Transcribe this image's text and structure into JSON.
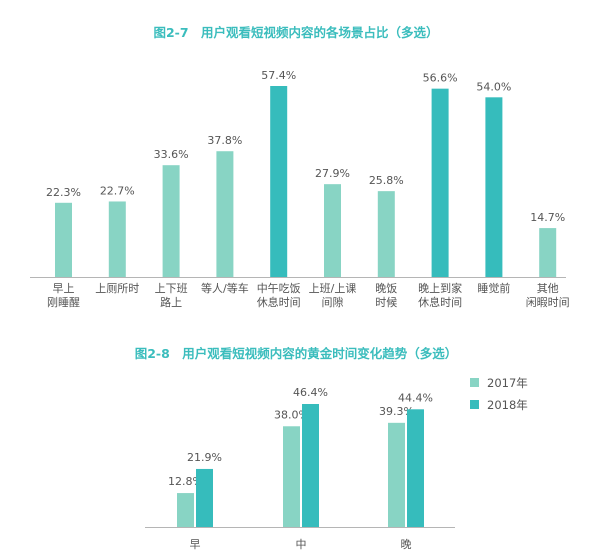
{
  "colors": {
    "light": "#88d4c4",
    "dark": "#36bcbc",
    "axis": "#b5b5b5",
    "title": "#3bbdbd",
    "text": "#555555"
  },
  "chart_data": [
    {
      "type": "bar",
      "title": "图2-7　用户观看短视频内容的各场景占比（多选）",
      "categories": [
        [
          "早上",
          "刚睡醒"
        ],
        [
          "上厕所时"
        ],
        [
          "上下班",
          "路上"
        ],
        [
          "等人/等车"
        ],
        [
          "中午吃饭",
          "休息时间"
        ],
        [
          "上班/上课",
          "间隙"
        ],
        [
          "晚饭",
          "时候"
        ],
        [
          "晚上到家",
          "休息时间"
        ],
        [
          "睡觉前"
        ],
        [
          "其他",
          "闲暇时间"
        ]
      ],
      "values": [
        22.3,
        22.7,
        33.6,
        37.8,
        57.4,
        27.9,
        25.8,
        56.6,
        54.0,
        14.7
      ],
      "value_labels": [
        "22.3%",
        "22.7%",
        "33.6%",
        "37.8%",
        "57.4%",
        "27.9%",
        "25.8%",
        "56.6%",
        "54.0%",
        "14.7%"
      ],
      "highlight": [
        false,
        false,
        false,
        false,
        true,
        false,
        false,
        true,
        true,
        false
      ],
      "ylim": [
        0,
        60
      ],
      "grid": false
    },
    {
      "type": "bar",
      "title": "图2-8　用户观看短视频内容的黄金时间变化趋势（多选）",
      "categories": [
        "早",
        "中",
        "晚"
      ],
      "series": [
        {
          "name": "2017年",
          "values": [
            12.8,
            38.0,
            39.3
          ],
          "labels": [
            "12.8%",
            "38.0%",
            "39.3%"
          ]
        },
        {
          "name": "2018年",
          "values": [
            21.9,
            46.4,
            44.4
          ],
          "labels": [
            "21.9%",
            "46.4%",
            "44.4%"
          ]
        }
      ],
      "legend_position": "top-right",
      "ylim": [
        0,
        50
      ],
      "grid": false
    }
  ]
}
